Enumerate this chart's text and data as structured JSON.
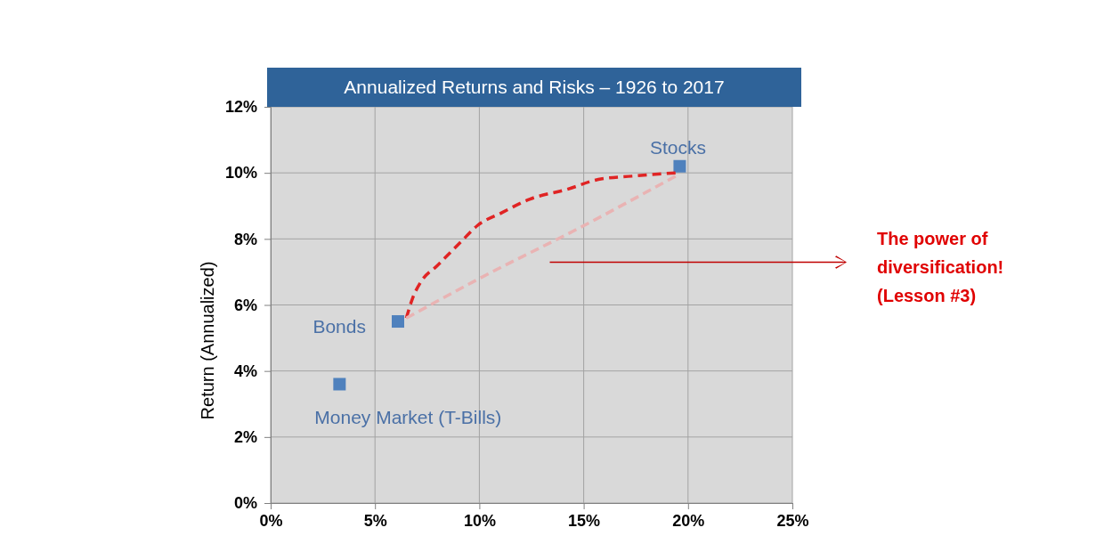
{
  "chart_data": {
    "type": "scatter",
    "title": "Annualized Returns and Risks – 1926 to 2017",
    "ylabel": "Return (Annualized)",
    "xlim": [
      0,
      25
    ],
    "ylim": [
      0,
      12
    ],
    "xticks": [
      {
        "value": 0,
        "label": "0%"
      },
      {
        "value": 5,
        "label": "5%"
      },
      {
        "value": 10,
        "label": "10%"
      },
      {
        "value": 15,
        "label": "15%"
      },
      {
        "value": 20,
        "label": "20%"
      },
      {
        "value": 25,
        "label": "25%"
      }
    ],
    "yticks": [
      {
        "value": 0,
        "label": "0%"
      },
      {
        "value": 2,
        "label": "2%"
      },
      {
        "value": 4,
        "label": "4%"
      },
      {
        "value": 6,
        "label": "6%"
      },
      {
        "value": 8,
        "label": "8%"
      },
      {
        "value": 10,
        "label": "10%"
      },
      {
        "value": 12,
        "label": "12%"
      }
    ],
    "grid": true,
    "legend": false,
    "marker": "square",
    "series": [
      {
        "name": "Money Market (T-Bills)",
        "color": "#4f81bd",
        "x": [
          3.3
        ],
        "values": [
          3.6
        ]
      },
      {
        "name": "Bonds",
        "color": "#4f81bd",
        "x": [
          6.1
        ],
        "values": [
          5.5
        ]
      },
      {
        "name": "Stocks",
        "color": "#4f81bd",
        "x": [
          19.6
        ],
        "values": [
          10.2
        ]
      },
      {
        "type": "line",
        "color": "#e02424",
        "line_style": "dashed",
        "marker": "none",
        "x": [
          6.5,
          6.8,
          7.2,
          8.0,
          9.1,
          9.9,
          11.1,
          12.4,
          14.2,
          15.7,
          17.3,
          19.4
        ],
        "values": [
          5.6,
          6.2,
          6.7,
          7.2,
          7.9,
          8.4,
          8.8,
          9.2,
          9.5,
          9.8,
          9.9,
          10.0
        ]
      },
      {
        "type": "line",
        "color": "#e9b3b3",
        "line_style": "dashed",
        "marker": "none",
        "x": [
          6.5,
          10.0,
          15.0,
          19.4
        ],
        "values": [
          5.6,
          6.8,
          8.4,
          9.9
        ]
      }
    ],
    "annotations": [
      "The power of diversification! (Lesson #3)"
    ]
  }
}
